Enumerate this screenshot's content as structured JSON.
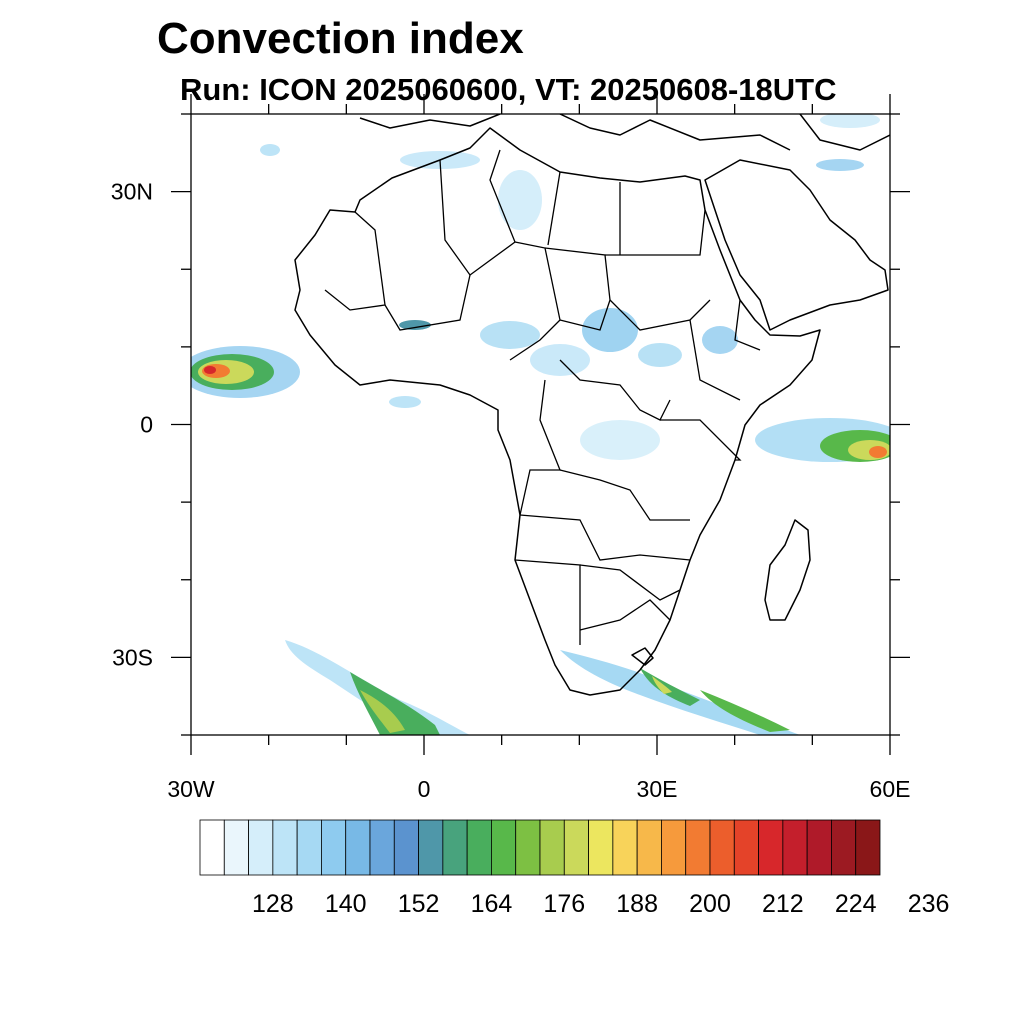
{
  "title": "Convection index",
  "subtitle": "Run: ICON 2025060600,  VT: 20250608-18UTC",
  "map": {
    "region": "Africa",
    "projection": "cylindrical-equidistant",
    "lon_range": [
      -30,
      60
    ],
    "lat_range": [
      -40,
      40
    ],
    "lon_ticks": [
      {
        "value": -30,
        "label": "30W"
      },
      {
        "value": 0,
        "label": "0"
      },
      {
        "value": 30,
        "label": "30E"
      },
      {
        "value": 60,
        "label": "60E"
      }
    ],
    "lat_ticks": [
      {
        "value": 30,
        "label": "30N"
      },
      {
        "value": 0,
        "label": "0"
      },
      {
        "value": -30,
        "label": "30S"
      }
    ],
    "ocean_color": "#ffffff",
    "coast_color": "#000000"
  },
  "colorbar": {
    "colors": [
      "#ffffff",
      "#eaf6fc",
      "#d5eefa",
      "#bde4f7",
      "#a6d9f3",
      "#8ecbef",
      "#78b9e6",
      "#6aa6dc",
      "#5b93cf",
      "#4f97a9",
      "#48a37d",
      "#49ae5d",
      "#58b84a",
      "#7dc043",
      "#a8cc4e",
      "#cbd95b",
      "#ece65f",
      "#f8d35a",
      "#f7b84a",
      "#f69a3c",
      "#f27b32",
      "#ec5e2c",
      "#e44329",
      "#d7272b",
      "#c41f2c",
      "#af1a29",
      "#9c1a22",
      "#8a1718"
    ],
    "labels": [
      "128",
      "140",
      "152",
      "164",
      "176",
      "188",
      "200",
      "212",
      "224",
      "236"
    ]
  }
}
